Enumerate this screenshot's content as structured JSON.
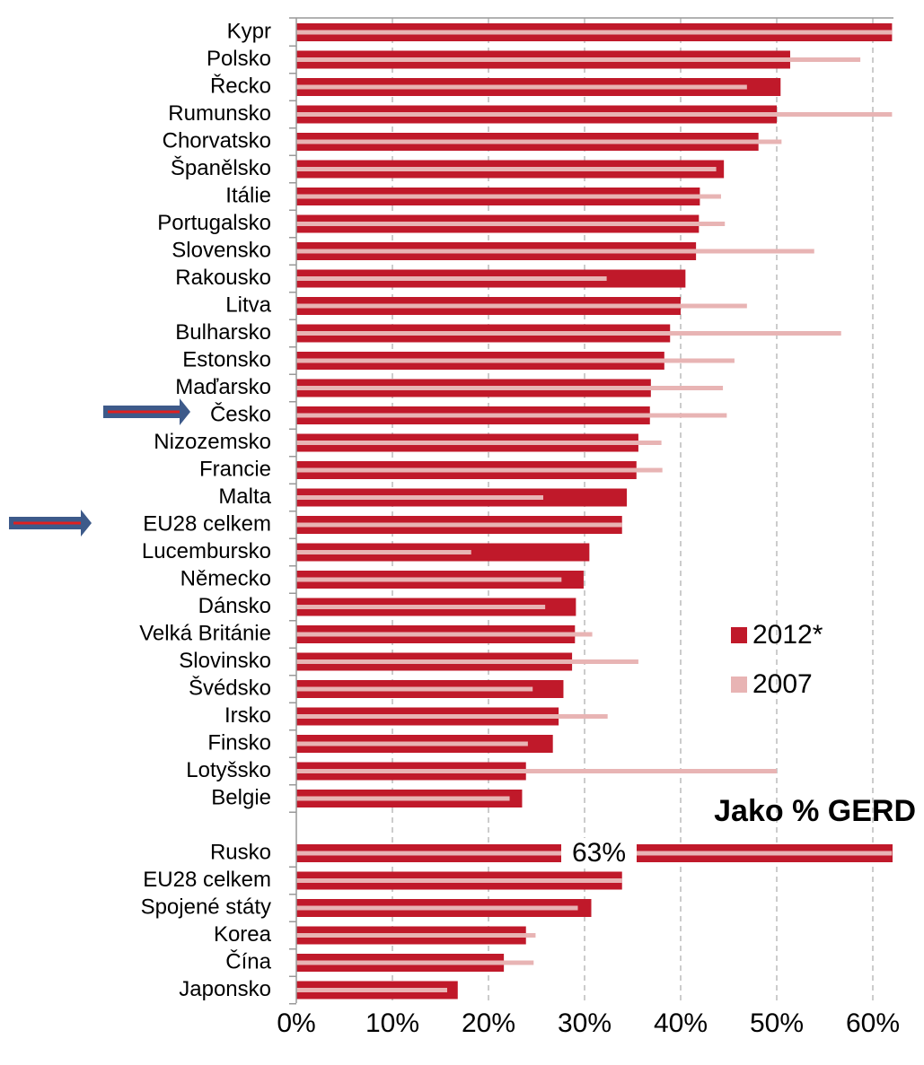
{
  "chart_data": {
    "type": "bar",
    "orientation": "horizontal",
    "annotation": "Jako % GERD",
    "categories": [
      "Kypr",
      "Polsko",
      "Řecko",
      "Rumunsko",
      "Chorvatsko",
      "Španělsko",
      "Itálie",
      "Portugalsko",
      "Slovensko",
      "Rakousko",
      "Litva",
      "Bulharsko",
      "Estonsko",
      "Maďarsko",
      "Česko",
      "Nizozemsko",
      "Francie",
      "Malta",
      "EU28 celkem",
      "Lucembursko",
      "Německo",
      "Dánsko",
      "Velká Británie",
      "Slovinsko",
      "Švédsko",
      "Irsko",
      "Finsko",
      "Lotyšsko",
      "Belgie",
      null,
      "Rusko",
      "EU28 celkem",
      "Spojené státy",
      "Korea",
      "Čína",
      "Japonsko"
    ],
    "series": [
      {
        "name": "2012*",
        "color": "#c0192a",
        "values": [
          62,
          51.4,
          50.4,
          50.0,
          48.1,
          44.5,
          42.0,
          41.9,
          41.6,
          40.5,
          40.0,
          38.9,
          38.3,
          36.9,
          36.8,
          35.6,
          35.4,
          34.4,
          33.9,
          30.5,
          29.9,
          29.1,
          29.0,
          28.7,
          27.8,
          27.3,
          26.7,
          23.9,
          23.5,
          null,
          63,
          33.9,
          30.7,
          23.9,
          21.6,
          16.8
        ],
        "value_labels": [
          null,
          null,
          null,
          null,
          null,
          null,
          null,
          null,
          null,
          null,
          null,
          null,
          null,
          null,
          null,
          null,
          null,
          null,
          null,
          null,
          null,
          null,
          null,
          null,
          null,
          null,
          null,
          null,
          null,
          null,
          "63%",
          null,
          null,
          null,
          null,
          null
        ]
      },
      {
        "name": "2007",
        "color": "#e8b4b4",
        "values": [
          62,
          58.7,
          46.9,
          62,
          50.5,
          43.7,
          44.2,
          44.6,
          53.9,
          32.3,
          46.9,
          56.7,
          45.6,
          44.4,
          44.8,
          38.0,
          38.1,
          25.7,
          33.9,
          18.2,
          27.6,
          25.9,
          30.8,
          35.6,
          24.6,
          32.4,
          24.1,
          50.0,
          22.2,
          null,
          62,
          33.9,
          29.3,
          24.9,
          24.7,
          15.7
        ]
      }
    ],
    "xlim": [
      0,
      62
    ],
    "xticks": [
      {
        "value": 0,
        "label": "0%"
      },
      {
        "value": 10,
        "label": "10%"
      },
      {
        "value": 20,
        "label": "20%"
      },
      {
        "value": 30,
        "label": "30%"
      },
      {
        "value": 40,
        "label": "40%"
      },
      {
        "value": 50,
        "label": "50%"
      },
      {
        "value": 60,
        "label": "60%"
      }
    ],
    "grid": true,
    "legend": "right"
  }
}
